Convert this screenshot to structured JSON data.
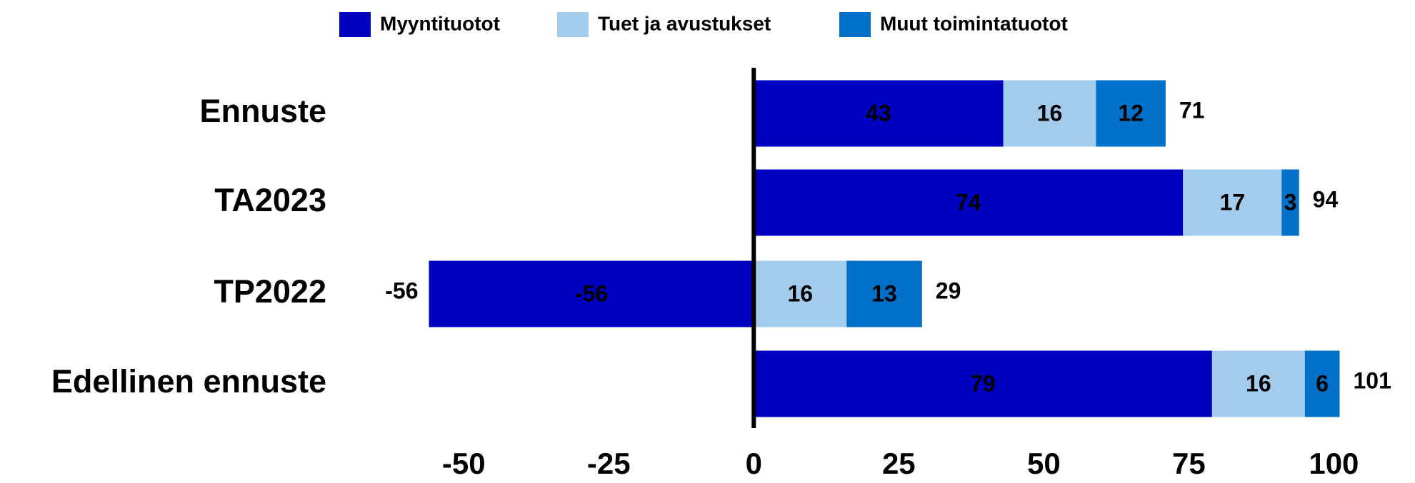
{
  "chart_data": {
    "type": "stacked_bar_horizontal",
    "categories": [
      "Ennuste",
      "TA2023",
      "TP2022",
      "Edellinen ennuste"
    ],
    "series": [
      {
        "name": "Myyntituotot",
        "color": "#0000c0",
        "values": [
          43,
          74,
          -56,
          79
        ]
      },
      {
        "name": "Tuet ja avustukset",
        "color": "#a3cbec",
        "values": [
          16,
          17,
          16,
          16
        ]
      },
      {
        "name": "Muut toimintatuotot",
        "color": "#0070c8",
        "values": [
          12,
          3,
          13,
          6
        ]
      }
    ],
    "totals": [
      71,
      94,
      29,
      101
    ],
    "negative_totals": [
      null,
      null,
      -56,
      null
    ],
    "xlim": [
      -60,
      105
    ],
    "xticks": [
      -50,
      -25,
      0,
      25,
      50,
      75,
      100
    ],
    "legend": "top"
  }
}
